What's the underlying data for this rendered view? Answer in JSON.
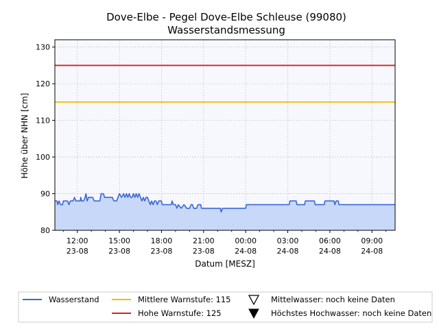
{
  "chart_data": {
    "type": "area",
    "title": "Dove-Elbe - Pegel Dove-Elbe Schleuse (99080)",
    "subtitle": "Wasserstandsmessung",
    "xlabel": "Datum [MESZ]",
    "ylabel": "Höhe über NHN [cm]",
    "ylim": [
      80,
      132
    ],
    "yticks": [
      80,
      90,
      100,
      110,
      120,
      130
    ],
    "xlim_hours": [
      10.4,
      34.65
    ],
    "x_ticks": [
      {
        "hour": 12,
        "time": "12:00",
        "date": "23-08"
      },
      {
        "hour": 15,
        "time": "15:00",
        "date": "23-08"
      },
      {
        "hour": 18,
        "time": "18:00",
        "date": "23-08"
      },
      {
        "hour": 21,
        "time": "21:00",
        "date": "23-08"
      },
      {
        "hour": 24,
        "time": "00:00",
        "date": "24-08"
      },
      {
        "hour": 27,
        "time": "03:00",
        "date": "24-08"
      },
      {
        "hour": 30,
        "time": "06:00",
        "date": "24-08"
      },
      {
        "hour": 33,
        "time": "09:00",
        "date": "24-08"
      }
    ],
    "grid": true,
    "series": [
      {
        "name": "Wasserstand",
        "color": "#3a66d6",
        "fill": "#c8d8f8",
        "points": [
          [
            10.4,
            88
          ],
          [
            10.55,
            88
          ],
          [
            10.6,
            87
          ],
          [
            10.7,
            88
          ],
          [
            10.8,
            87
          ],
          [
            10.95,
            87
          ],
          [
            11.0,
            88
          ],
          [
            11.3,
            88
          ],
          [
            11.4,
            87
          ],
          [
            11.5,
            88
          ],
          [
            11.7,
            88
          ],
          [
            11.8,
            89
          ],
          [
            11.9,
            88
          ],
          [
            12.2,
            88
          ],
          [
            12.25,
            89
          ],
          [
            12.3,
            88
          ],
          [
            12.45,
            88
          ],
          [
            12.55,
            89
          ],
          [
            12.62,
            90
          ],
          [
            12.7,
            88
          ],
          [
            12.8,
            89
          ],
          [
            13.1,
            89
          ],
          [
            13.2,
            88
          ],
          [
            13.6,
            88
          ],
          [
            13.7,
            90
          ],
          [
            13.85,
            90
          ],
          [
            13.95,
            89
          ],
          [
            14.5,
            89
          ],
          [
            14.6,
            88
          ],
          [
            14.8,
            88
          ],
          [
            14.9,
            89
          ],
          [
            15.0,
            90
          ],
          [
            15.15,
            89
          ],
          [
            15.3,
            90
          ],
          [
            15.4,
            89
          ],
          [
            15.5,
            90
          ],
          [
            15.6,
            89
          ],
          [
            15.7,
            90
          ],
          [
            15.8,
            89
          ],
          [
            15.9,
            89
          ],
          [
            16.0,
            90
          ],
          [
            16.1,
            89
          ],
          [
            16.2,
            90
          ],
          [
            16.3,
            89
          ],
          [
            16.4,
            90
          ],
          [
            16.5,
            89
          ],
          [
            16.6,
            88
          ],
          [
            16.7,
            89
          ],
          [
            16.8,
            88
          ],
          [
            16.9,
            89
          ],
          [
            17.0,
            89
          ],
          [
            17.1,
            88
          ],
          [
            17.2,
            87
          ],
          [
            17.3,
            88
          ],
          [
            17.4,
            87
          ],
          [
            17.5,
            88
          ],
          [
            17.6,
            88
          ],
          [
            17.7,
            87
          ],
          [
            17.8,
            88
          ],
          [
            18.0,
            88
          ],
          [
            18.05,
            87
          ],
          [
            18.7,
            87
          ],
          [
            18.75,
            88
          ],
          [
            18.85,
            87
          ],
          [
            19.0,
            87
          ],
          [
            19.1,
            86
          ],
          [
            19.2,
            87
          ],
          [
            19.4,
            86
          ],
          [
            19.6,
            87
          ],
          [
            19.8,
            86
          ],
          [
            20.0,
            86
          ],
          [
            20.1,
            87
          ],
          [
            20.2,
            87
          ],
          [
            20.3,
            86
          ],
          [
            20.5,
            86
          ],
          [
            20.6,
            87
          ],
          [
            20.8,
            87
          ],
          [
            20.85,
            86
          ],
          [
            22.2,
            86
          ],
          [
            22.25,
            85
          ],
          [
            22.35,
            86
          ],
          [
            24.0,
            86
          ],
          [
            24.05,
            87
          ],
          [
            27.1,
            87
          ],
          [
            27.15,
            88
          ],
          [
            27.6,
            88
          ],
          [
            27.65,
            87
          ],
          [
            28.2,
            87
          ],
          [
            28.25,
            88
          ],
          [
            28.9,
            88
          ],
          [
            28.95,
            87
          ],
          [
            29.6,
            87
          ],
          [
            29.65,
            88
          ],
          [
            30.3,
            88
          ],
          [
            30.35,
            87
          ],
          [
            30.45,
            88
          ],
          [
            30.6,
            88
          ],
          [
            30.65,
            87
          ],
          [
            34.65,
            87
          ]
        ]
      },
      {
        "name": "Mittlere Warnstufe: 115",
        "color": "#f5b800",
        "y": 115
      },
      {
        "name": "Hohe Warnstufe: 125",
        "color": "#d62020",
        "y": 125
      }
    ],
    "legend": {
      "position": "bottom",
      "items": [
        {
          "label": "Wasserstand",
          "symbol": "line",
          "color": "#3a66d6"
        },
        {
          "label": "Mittlere Warnstufe: 115",
          "symbol": "line",
          "color": "#f5b800"
        },
        {
          "label": "Mittelwasser: noch keine Daten",
          "symbol": "triangle-down-open",
          "color": "#000000"
        },
        {
          "label": "Hohe Warnstufe: 125",
          "symbol": "line",
          "color": "#d62020"
        },
        {
          "label": "Höchstes Hochwasser: noch keine Daten",
          "symbol": "triangle-down-filled",
          "color": "#000000"
        }
      ]
    },
    "plot_background": "#f7f8fd"
  }
}
